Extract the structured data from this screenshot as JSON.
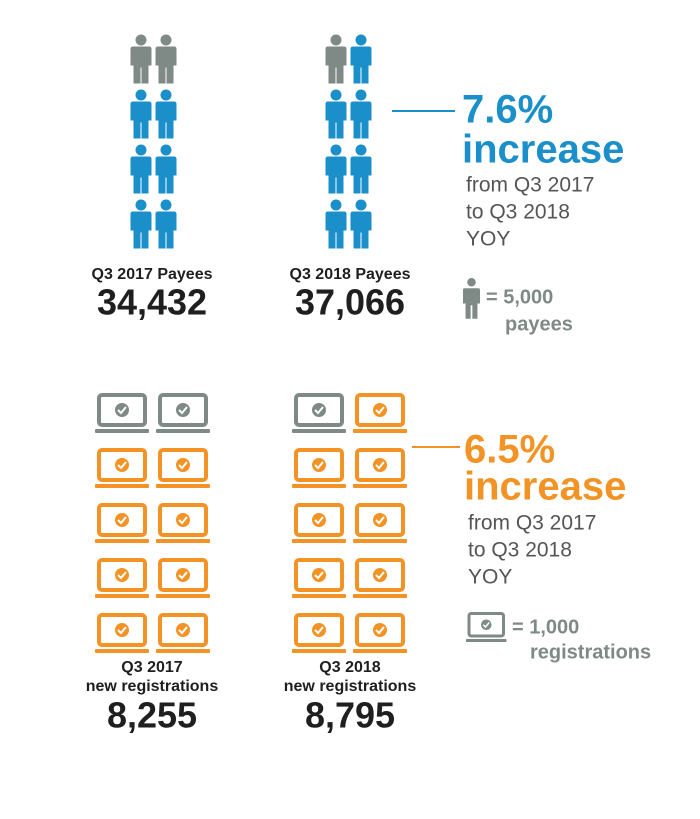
{
  "payees": {
    "q3_2017": {
      "label": "Q3 2017 Payees",
      "value": "34,432"
    },
    "q3_2018": {
      "label": "Q3 2018 Payees",
      "value": "37,066"
    },
    "change": {
      "percent": "7.6%",
      "word": "increase",
      "lines": [
        "from Q3 2017",
        "to Q3 2018",
        "YOY"
      ]
    },
    "legend": {
      "unit": "= 5,000",
      "noun": "payees"
    }
  },
  "registrations": {
    "q3_2017": {
      "label": [
        "Q3 2017",
        "new registrations"
      ],
      "value": "8,255"
    },
    "q3_2018": {
      "label": [
        "Q3 2018",
        "new registrations"
      ],
      "value": "8,795"
    },
    "change": {
      "percent": "6.5%",
      "word": "increase",
      "lines": [
        "from Q3 2017",
        "to Q3 2018",
        "YOY"
      ]
    },
    "legend": {
      "unit": "= 1,000",
      "noun": "registrations"
    }
  }
}
